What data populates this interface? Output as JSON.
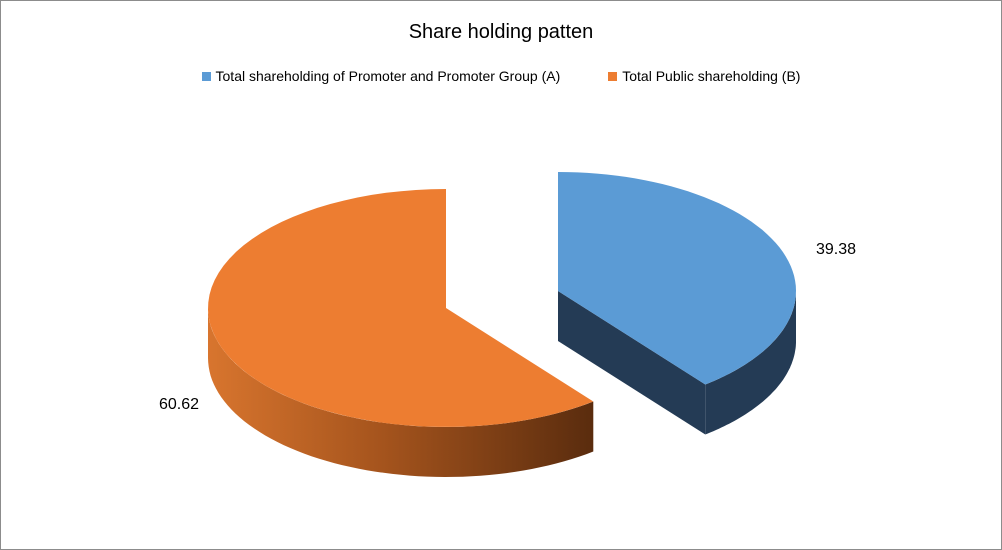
{
  "chart_data": {
    "type": "pie",
    "style": "3d-exploded",
    "title": "Share holding patten",
    "legend_position": "top",
    "series": [
      {
        "name": "Total shareholding of Promoter and Promoter Group (A)",
        "value": 39.38,
        "label": "39.38",
        "color": "#5b9bd5",
        "side_color": "#243b55"
      },
      {
        "name": "Total Public shareholding (B)",
        "value": 60.62,
        "label": "60.62",
        "color": "#ed7d31",
        "side_color": "#c0611f"
      }
    ]
  }
}
